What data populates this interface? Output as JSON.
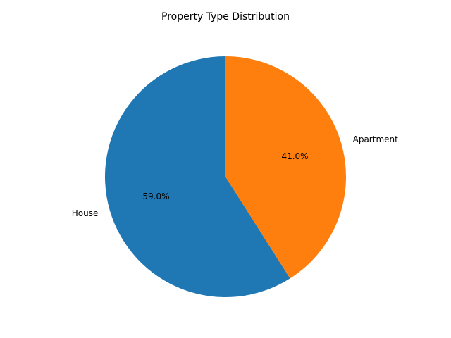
{
  "chart_data": {
    "type": "pie",
    "title": "Property Type Distribution",
    "categories": [
      "House",
      "Apartment"
    ],
    "values": [
      59.0,
      41.0
    ],
    "percent_labels": [
      "59.0%",
      "41.0%"
    ],
    "colors": [
      "#1f77b4",
      "#ff7f0e"
    ],
    "start_angle_deg": 90,
    "direction": "counterclockwise",
    "legend": "none"
  }
}
